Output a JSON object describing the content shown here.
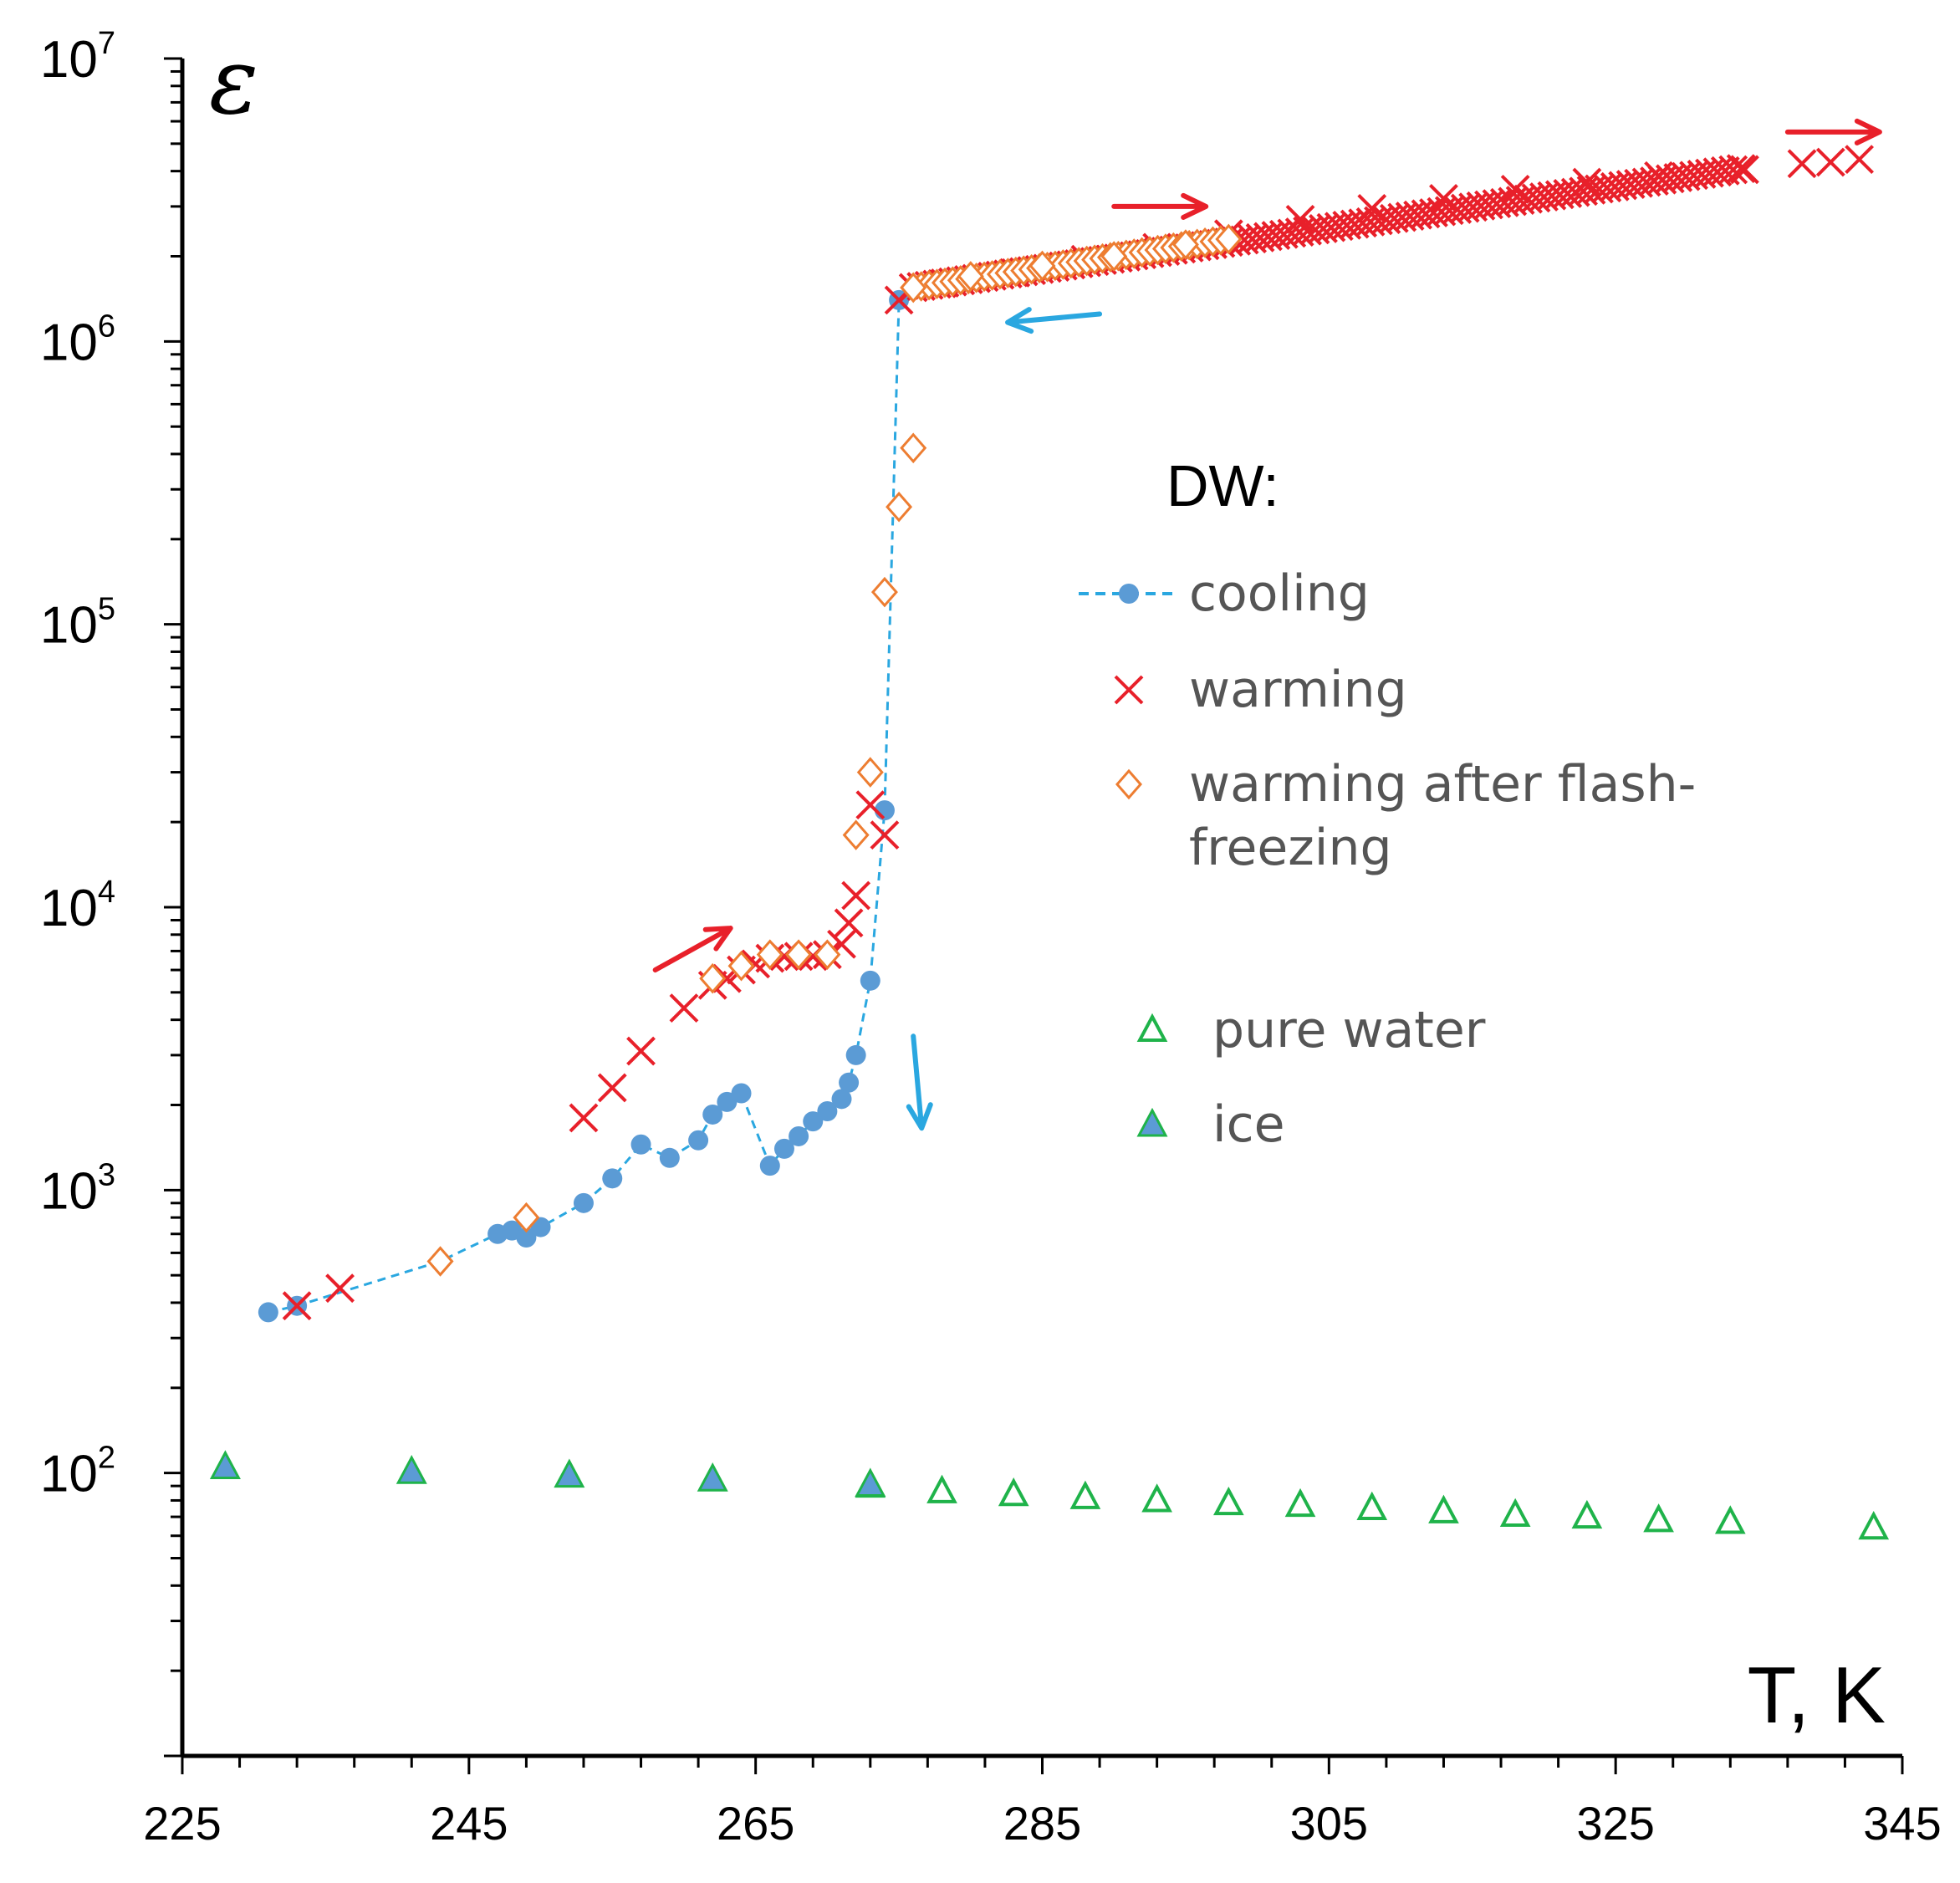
{
  "chart_data": {
    "type": "scatter",
    "title": "",
    "xlabel": "T, K",
    "ylabel": "ε",
    "xlim": [
      225,
      345
    ],
    "ylim": [
      10,
      10000000
    ],
    "yscale": "log",
    "x_ticks": [
      "225",
      "245",
      "265",
      "285",
      "305",
      "325",
      "345"
    ],
    "y_ticks": [
      {
        "value": 100,
        "base": "10",
        "exp": "2"
      },
      {
        "value": 1000,
        "base": "10",
        "exp": "3"
      },
      {
        "value": 10000,
        "base": "10",
        "exp": "4"
      },
      {
        "value": 100000,
        "base": "10",
        "exp": "5"
      },
      {
        "value": 1000000,
        "base": "10",
        "exp": "6"
      },
      {
        "value": 10000000,
        "base": "10",
        "exp": "7"
      }
    ],
    "legend": {
      "title": "DW:",
      "placement": "center-right",
      "entries": [
        "cooling",
        "warming",
        "warming after flash-freezing",
        "pure water",
        "ice"
      ]
    },
    "series": [
      {
        "name": "cooling",
        "marker": "filled-circle",
        "line": "dashed",
        "color": "#5b9bd5",
        "line_color": "#2aa7e0",
        "points": [
          [
            231,
            370
          ],
          [
            233,
            390
          ],
          [
            243,
            560
          ],
          [
            247,
            700
          ],
          [
            248,
            720
          ],
          [
            249,
            680
          ],
          [
            250,
            740
          ],
          [
            253,
            900
          ],
          [
            255,
            1100
          ],
          [
            257,
            1450
          ],
          [
            259,
            1300
          ],
          [
            261,
            1500
          ],
          [
            262,
            1850
          ],
          [
            263,
            2050
          ],
          [
            264,
            2200
          ],
          [
            266,
            1220
          ],
          [
            267,
            1400
          ],
          [
            268,
            1550
          ],
          [
            269,
            1750
          ],
          [
            270,
            1900
          ],
          [
            271,
            2100
          ],
          [
            271.5,
            2400
          ],
          [
            272,
            3000
          ],
          [
            273,
            5500
          ],
          [
            274,
            22000
          ],
          [
            275,
            1400000
          ]
        ]
      },
      {
        "name": "warming",
        "marker": "x",
        "color": "#e8202a",
        "points": [
          [
            233,
            390
          ],
          [
            236,
            450
          ],
          [
            253,
            1800
          ],
          [
            255,
            2300
          ],
          [
            257,
            3100
          ],
          [
            260,
            4400
          ],
          [
            262,
            5300
          ],
          [
            263,
            5600
          ],
          [
            264,
            6000
          ],
          [
            265,
            6300
          ],
          [
            266,
            6600
          ],
          [
            267,
            6700
          ],
          [
            268,
            6700
          ],
          [
            269,
            6700
          ],
          [
            270,
            6800
          ],
          [
            271,
            7400
          ],
          [
            271.5,
            8800
          ],
          [
            272,
            11000
          ],
          [
            273,
            23000
          ],
          [
            274,
            18000
          ],
          [
            275,
            1400000
          ],
          [
            278,
            1600000
          ],
          [
            283,
            1750000
          ],
          [
            288,
            1950000
          ],
          [
            293,
            2150000
          ],
          [
            298,
            2400000
          ],
          [
            303,
            2700000
          ],
          [
            308,
            2950000
          ],
          [
            313,
            3200000
          ],
          [
            318,
            3450000
          ],
          [
            323,
            3650000
          ],
          [
            328,
            3850000
          ],
          [
            334,
            4050000
          ],
          [
            338,
            4250000
          ],
          [
            340,
            4300000
          ],
          [
            342,
            4400000
          ]
        ],
        "band": [
          [
            276,
            1550000
          ],
          [
            334,
            4100000
          ]
        ]
      },
      {
        "name": "warming after flash-freezing",
        "marker": "open-diamond",
        "color": "#ed7d31",
        "points": [
          [
            243,
            560
          ],
          [
            249,
            800
          ],
          [
            262,
            5600
          ],
          [
            264,
            6200
          ],
          [
            266,
            6800
          ],
          [
            268,
            6800
          ],
          [
            270,
            6800
          ],
          [
            272,
            18000
          ],
          [
            273,
            30000
          ],
          [
            274,
            130000
          ],
          [
            275,
            260000
          ],
          [
            276,
            420000
          ],
          [
            276,
            1550000
          ],
          [
            280,
            1700000
          ],
          [
            285,
            1850000
          ],
          [
            290,
            2000000
          ],
          [
            295,
            2200000
          ],
          [
            298,
            2300000
          ]
        ],
        "band": [
          [
            276,
            1550000
          ],
          [
            298,
            2300000
          ]
        ]
      },
      {
        "name": "pure water",
        "marker": "open-triangle",
        "color": "#1fb34a",
        "points": [
          [
            273,
            90
          ],
          [
            278,
            86
          ],
          [
            283,
            84
          ],
          [
            288,
            82
          ],
          [
            293,
            80
          ],
          [
            298,
            78
          ],
          [
            303,
            77
          ],
          [
            308,
            75
          ],
          [
            313,
            73
          ],
          [
            318,
            71
          ],
          [
            323,
            70
          ],
          [
            328,
            68
          ],
          [
            333,
            67
          ],
          [
            343,
            64
          ]
        ]
      },
      {
        "name": "ice",
        "marker": "filled-triangle",
        "color": "#5b9bd5",
        "edge_color": "#1fb34a",
        "points": [
          [
            228,
            105
          ],
          [
            241,
            101
          ],
          [
            252,
            98
          ],
          [
            262,
            95
          ],
          [
            273,
            91
          ]
        ]
      }
    ],
    "annotations": [
      {
        "type": "arrow",
        "color": "#e8202a",
        "direction": "up-right",
        "near": [
          258,
          6000
        ]
      },
      {
        "type": "arrow",
        "color": "#2aa7e0",
        "direction": "down",
        "near": [
          276,
          3500
        ]
      },
      {
        "type": "arrow",
        "color": "#2aa7e0",
        "direction": "left",
        "near": [
          289,
          1250000
        ]
      },
      {
        "type": "arrow",
        "color": "#e8202a",
        "direction": "right",
        "near": [
          290,
          3000000
        ]
      },
      {
        "type": "arrow",
        "color": "#e8202a",
        "direction": "right",
        "near": [
          337,
          5500000
        ]
      }
    ]
  }
}
